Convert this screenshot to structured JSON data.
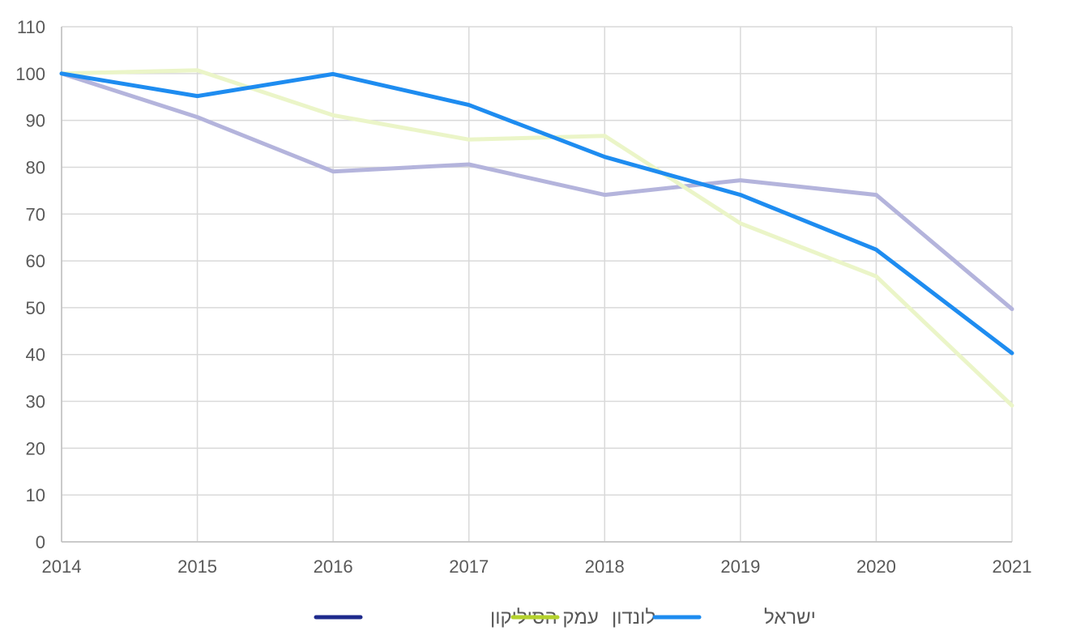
{
  "chart_data": {
    "type": "line",
    "title": "",
    "xlabel": "",
    "ylabel": "",
    "x": [
      "2014",
      "2015",
      "2016",
      "2017",
      "2018",
      "2019",
      "2020",
      "2021"
    ],
    "ylim": [
      0,
      110
    ],
    "yticks": [
      0,
      10,
      20,
      30,
      40,
      50,
      60,
      70,
      80,
      90,
      100,
      110
    ],
    "grid": true,
    "legend_position": "bottom",
    "series": [
      {
        "name": "עמק הסיליקון",
        "line_color": "#B4B4DC",
        "legend_color": "#1E2A8C",
        "values": [
          100,
          90.7,
          79.1,
          80.6,
          74.1,
          77.2,
          74.1,
          49.7
        ]
      },
      {
        "name": "לונדון",
        "line_color": "#EBF5C8",
        "legend_color": "#B4D22D",
        "values": [
          100,
          100.7,
          91.1,
          85.9,
          86.7,
          68.0,
          56.7,
          29.1
        ]
      },
      {
        "name": "ישראל",
        "line_color": "#1E8CF0",
        "legend_color": "#1E8CF0",
        "values": [
          100,
          95.2,
          99.9,
          93.3,
          82.2,
          74.1,
          62.4,
          40.3
        ]
      }
    ]
  }
}
